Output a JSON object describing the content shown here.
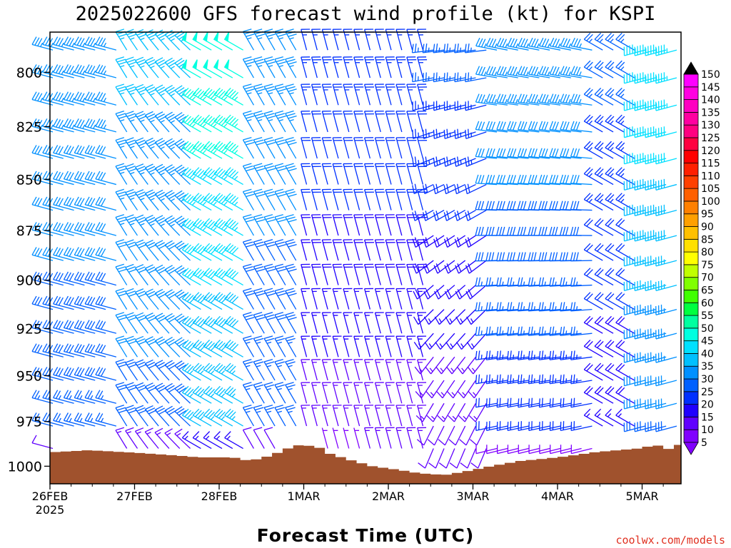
{
  "chart_data": {
    "type": "wind_barb_profile",
    "title": "2025022600 GFS forecast wind profile (kt) for KSPI",
    "xlabel": "Forecast Time (UTC)",
    "ylabel": "",
    "credit": "coolwx.com/models",
    "x_ticks": [
      "26FEB",
      "27FEB",
      "28FEB",
      "1MAR",
      "2MAR",
      "3MAR",
      "4MAR",
      "5MAR"
    ],
    "x_year": "2025",
    "x_range_days": [
      0,
      7.4
    ],
    "y_ticks": [
      800,
      825,
      850,
      875,
      900,
      925,
      950,
      975,
      1000
    ],
    "y_range": [
      782,
      1010
    ],
    "units": "kt",
    "colorbar_levels": [
      5,
      10,
      15,
      20,
      25,
      30,
      35,
      40,
      45,
      50,
      55,
      60,
      65,
      70,
      75,
      80,
      85,
      90,
      95,
      100,
      105,
      110,
      115,
      120,
      125,
      130,
      135,
      140,
      145,
      150
    ],
    "colorbar_colors": [
      "#8000ff",
      "#6000ff",
      "#2000ff",
      "#0030ff",
      "#0060ff",
      "#0090ff",
      "#00c0ff",
      "#00e0ff",
      "#00ffe0",
      "#00ffa0",
      "#00ff40",
      "#40ff00",
      "#80ff00",
      "#c0ff00",
      "#ffff00",
      "#ffe000",
      "#ffc000",
      "#ffa000",
      "#ff8000",
      "#ff6000",
      "#ff4000",
      "#ff2000",
      "#ff0000",
      "#ff0040",
      "#ff0080",
      "#ff00a0",
      "#ff00c0",
      "#ff00e0",
      "#ff00ff"
    ],
    "terrain_color": "#a0522d",
    "surface_pressure_key": [
      [
        0,
        992
      ],
      [
        0.4,
        991
      ],
      [
        0.8,
        992
      ],
      [
        1.15,
        993
      ],
      [
        1.45,
        994
      ],
      [
        1.7,
        995
      ],
      [
        2.1,
        995
      ],
      [
        2.2,
        996
      ],
      [
        2.3,
        997
      ],
      [
        2.55,
        994
      ],
      [
        2.8,
        989
      ],
      [
        2.9,
        988
      ],
      [
        3.1,
        989
      ],
      [
        3.25,
        993
      ],
      [
        3.45,
        996
      ],
      [
        3.75,
        1000
      ],
      [
        4.05,
        1002
      ],
      [
        4.3,
        1004
      ],
      [
        4.6,
        1005
      ],
      [
        4.85,
        1003
      ],
      [
        5.15,
        1000
      ],
      [
        5.5,
        997
      ],
      [
        5.95,
        995
      ],
      [
        6.4,
        992
      ],
      [
        6.9,
        990
      ],
      [
        7.1,
        988
      ],
      [
        7.3,
        991
      ],
      [
        7.4,
        987
      ]
    ]
  }
}
